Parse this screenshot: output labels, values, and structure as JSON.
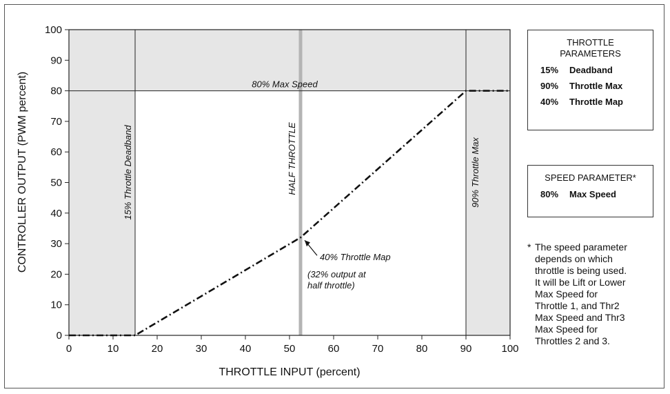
{
  "chart_data": {
    "type": "line",
    "xlabel": "THROTTLE INPUT  (percent)",
    "ylabel": "CONTROLLER OUTPUT  (PWM percent)",
    "xlim": [
      0,
      100
    ],
    "ylim": [
      0,
      100
    ],
    "xticks": [
      "0",
      "10",
      "20",
      "30",
      "40",
      "50",
      "60",
      "70",
      "80",
      "90",
      "100"
    ],
    "yticks": [
      "0",
      "10",
      "20",
      "30",
      "40",
      "50",
      "60",
      "70",
      "80",
      "90",
      "100"
    ],
    "grid": false,
    "series": [
      {
        "x": [
          0,
          15,
          52.5,
          90,
          100
        ],
        "y": [
          0,
          0,
          32,
          80,
          80
        ]
      }
    ],
    "shaded_regions": [
      {
        "x": [
          0,
          15
        ],
        "y": [
          0,
          100
        ]
      },
      {
        "x": [
          15,
          90
        ],
        "y": [
          80,
          100
        ]
      },
      {
        "x": [
          90,
          100
        ],
        "y": [
          0,
          100
        ]
      }
    ],
    "vertical_lines": [
      15,
      52.5,
      90
    ],
    "annotations": {
      "max_speed": "80% Max Speed",
      "deadband": "15% Throttle Deadband",
      "half_throttle": "HALF THROTTLE",
      "throttle_max": "90% Throttle Max",
      "throttle_map": "40% Throttle Map",
      "output_note_1": "(32% output at",
      "output_note_2": "half throttle)"
    },
    "colors": {
      "shade": "#e6e6e6",
      "half_throttle_line": "#b4b4b4",
      "curve": "#111111"
    }
  },
  "throttle_panel": {
    "title_1": "THROTTLE",
    "title_2": "PARAMETERS",
    "rows": [
      {
        "pct": "15%",
        "label": "Deadband"
      },
      {
        "pct": "90%",
        "label": "Throttle Max"
      },
      {
        "pct": "40%",
        "label": "Throttle Map"
      }
    ]
  },
  "speed_panel": {
    "title": "SPEED PARAMETER*",
    "rows": [
      {
        "pct": "80%",
        "label": "Max Speed"
      }
    ]
  },
  "footnote": {
    "star": "*",
    "lines": [
      "The speed parameter",
      "depends on which",
      "throttle is being used.",
      "It will be Lift or Lower",
      "Max Speed for",
      "Throttle 1, and Thr2",
      "Max Speed and Thr3",
      "Max Speed for",
      "Throttles 2 and 3."
    ]
  }
}
